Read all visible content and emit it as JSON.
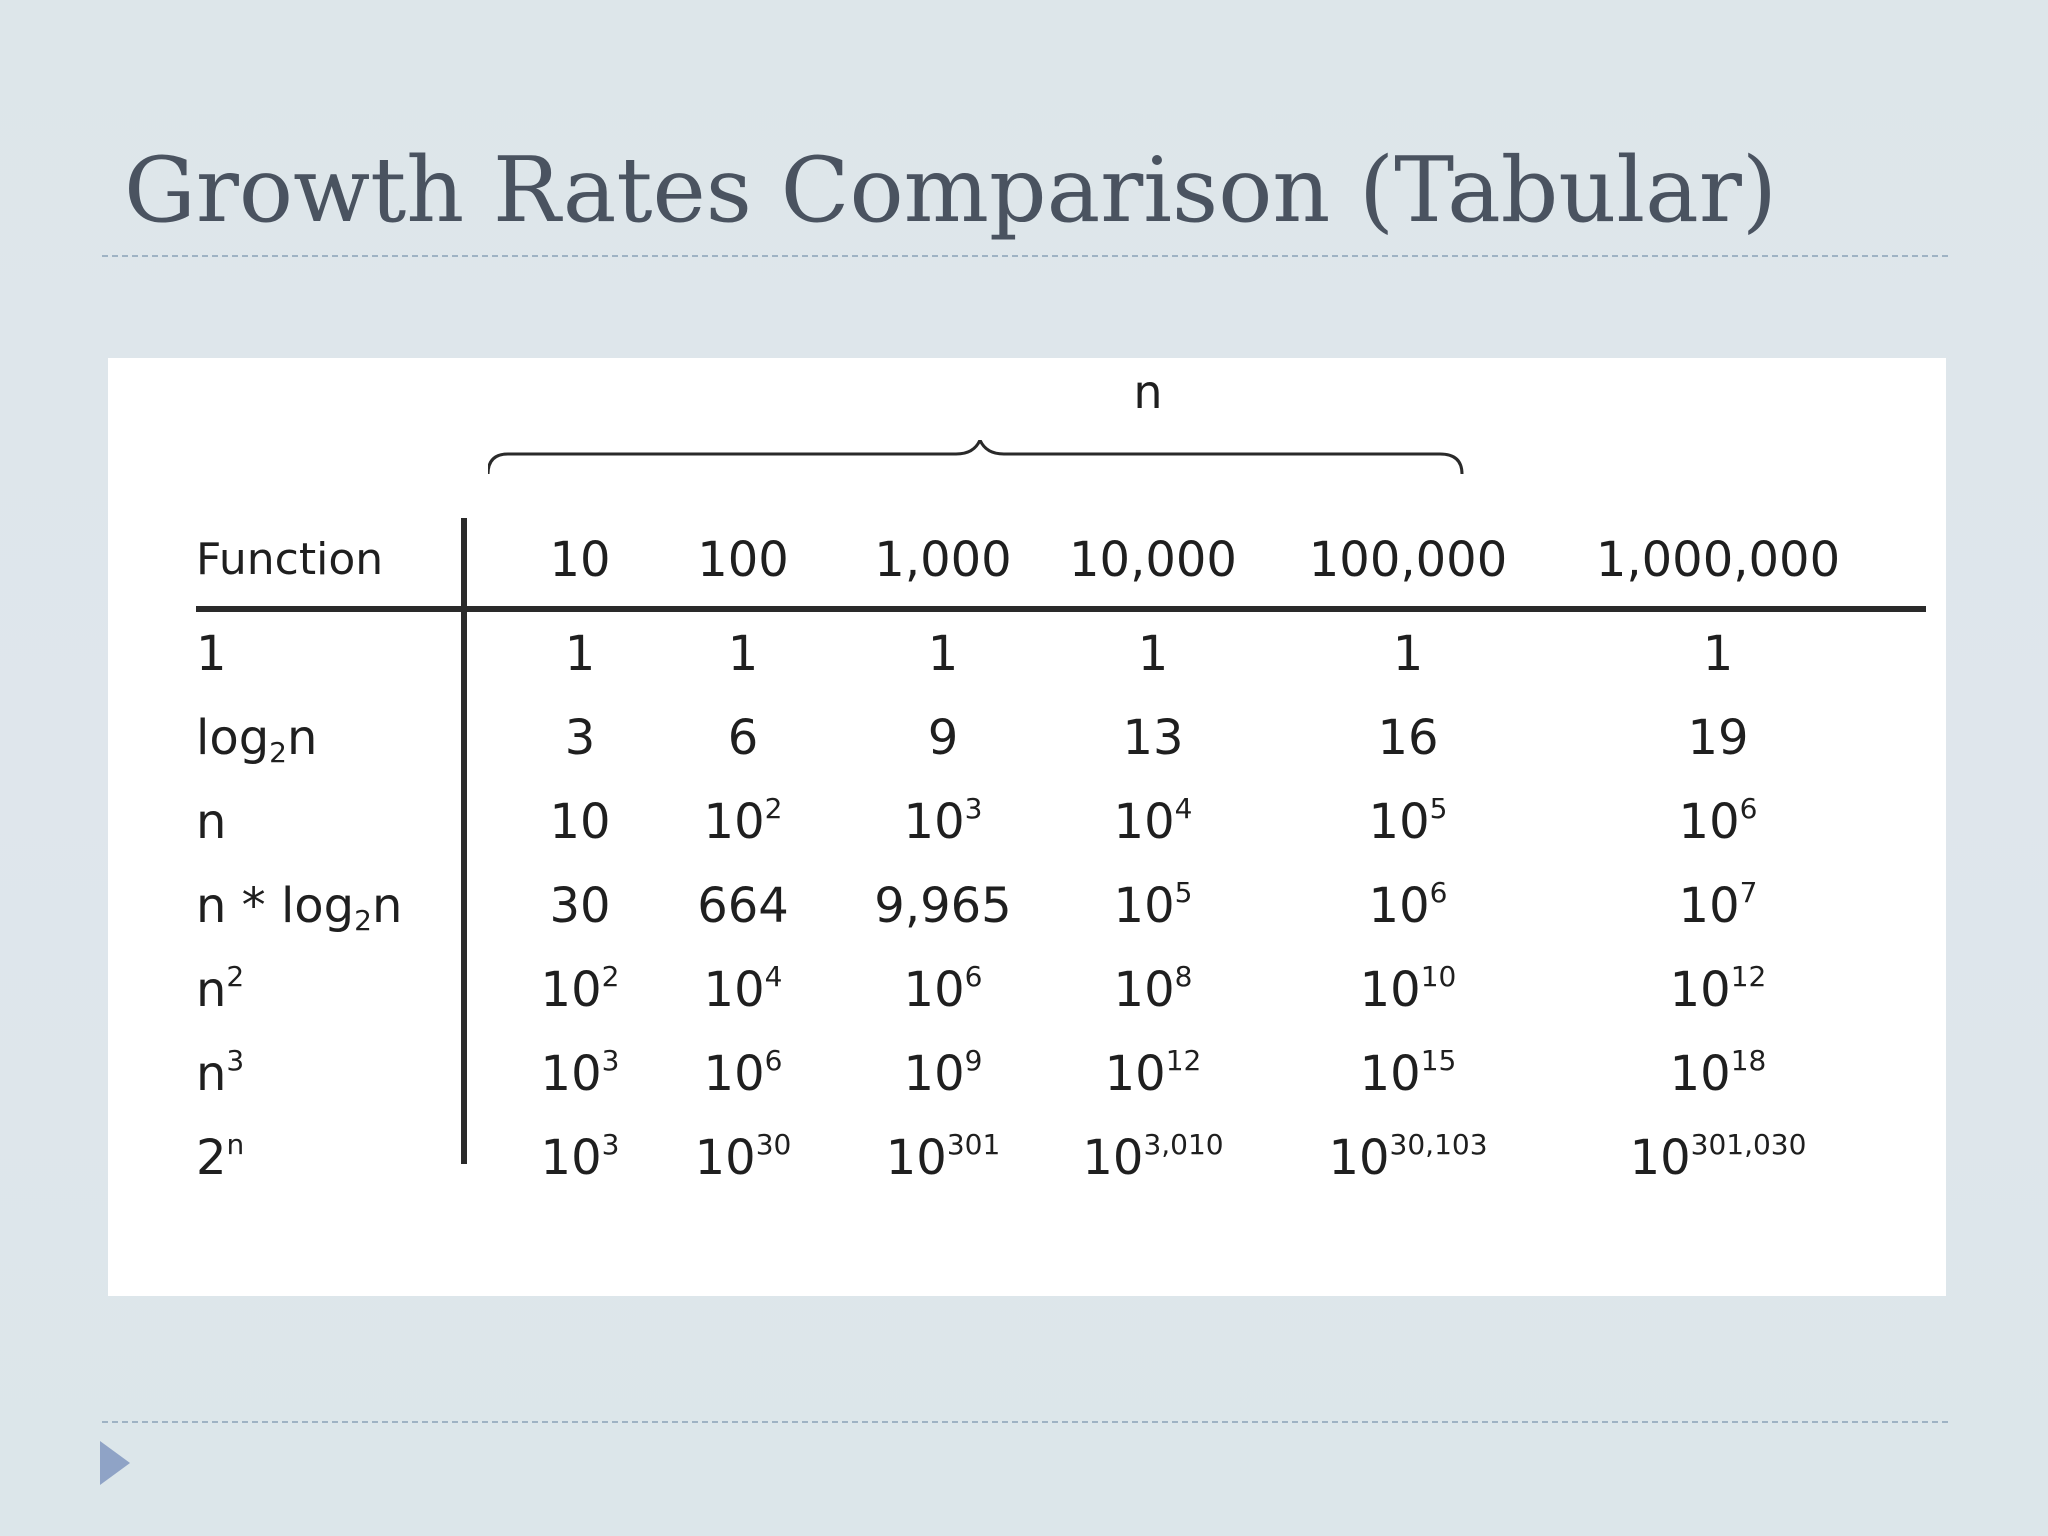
{
  "slide": {
    "title": "Growth Rates Comparison (Tabular)"
  },
  "table": {
    "group_label": "n",
    "header": {
      "function_label": "Function",
      "columns": [
        "10",
        "100",
        "1,000",
        "10,000",
        "100,000",
        "1,000,000"
      ]
    },
    "rows": [
      {
        "function": {
          "base": "1"
        },
        "cells": [
          {
            "base": "1"
          },
          {
            "base": "1"
          },
          {
            "base": "1"
          },
          {
            "base": "1"
          },
          {
            "base": "1"
          },
          {
            "base": "1"
          }
        ]
      },
      {
        "function": {
          "base": "log",
          "sub": "2",
          "tail": "n"
        },
        "cells": [
          {
            "base": "3"
          },
          {
            "base": "6"
          },
          {
            "base": "9"
          },
          {
            "base": "13"
          },
          {
            "base": "16"
          },
          {
            "base": "19"
          }
        ]
      },
      {
        "function": {
          "base": "n"
        },
        "cells": [
          {
            "base": "10"
          },
          {
            "base": "10",
            "sup": "2"
          },
          {
            "base": "10",
            "sup": "3"
          },
          {
            "base": "10",
            "sup": "4"
          },
          {
            "base": "10",
            "sup": "5"
          },
          {
            "base": "10",
            "sup": "6"
          }
        ]
      },
      {
        "function": {
          "base": "n * log",
          "sub": "2",
          "tail": "n"
        },
        "cells": [
          {
            "base": "30"
          },
          {
            "base": "664"
          },
          {
            "base": "9,965"
          },
          {
            "base": "10",
            "sup": "5"
          },
          {
            "base": "10",
            "sup": "6"
          },
          {
            "base": "10",
            "sup": "7"
          }
        ]
      },
      {
        "function": {
          "base": "n",
          "sup": "2"
        },
        "cells": [
          {
            "base": "10",
            "sup": "2"
          },
          {
            "base": "10",
            "sup": "4"
          },
          {
            "base": "10",
            "sup": "6"
          },
          {
            "base": "10",
            "sup": "8"
          },
          {
            "base": "10",
            "sup": "10"
          },
          {
            "base": "10",
            "sup": "12"
          }
        ]
      },
      {
        "function": {
          "base": "n",
          "sup": "3"
        },
        "cells": [
          {
            "base": "10",
            "sup": "3"
          },
          {
            "base": "10",
            "sup": "6"
          },
          {
            "base": "10",
            "sup": "9"
          },
          {
            "base": "10",
            "sup": "12"
          },
          {
            "base": "10",
            "sup": "15"
          },
          {
            "base": "10",
            "sup": "18"
          }
        ]
      },
      {
        "function": {
          "base": "2",
          "sup": "n"
        },
        "cells": [
          {
            "base": "10",
            "sup": "3"
          },
          {
            "base": "10",
            "sup": "30"
          },
          {
            "base": "10",
            "sup": "301"
          },
          {
            "base": "10",
            "sup": "3,010"
          },
          {
            "base": "10",
            "sup": "30,103"
          },
          {
            "base": "10",
            "sup": "301,030"
          }
        ]
      }
    ]
  },
  "colors": {
    "background": "#dfe6ea",
    "title": "#4a5360",
    "rule": "#9fb3c4",
    "bullet": "#8fa3c6",
    "table_text": "#1f1f1f",
    "table_lines": "#2a2a2a"
  },
  "icons": {
    "footer_bullet": "triangle-right-icon"
  }
}
